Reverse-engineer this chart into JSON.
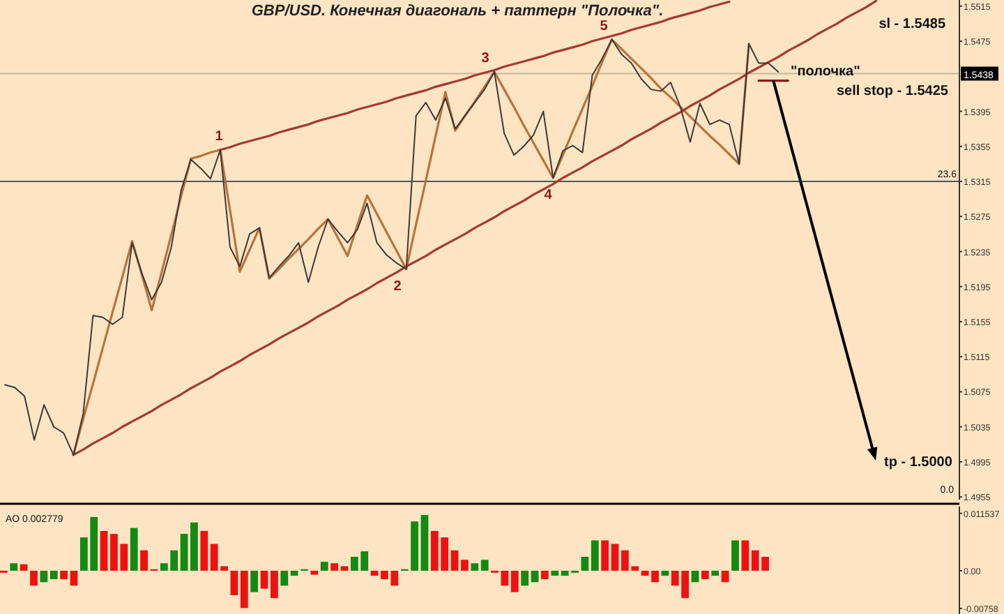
{
  "chart_data": [
    {
      "type": "line",
      "title": "GBP/USD. Конечная диагональ + паттерн \"Полочка\".",
      "ylim": [
        1.4952,
        1.5522
      ],
      "tick_labels": "y",
      "categories": [
        null,
        null,
        null,
        null,
        null,
        null,
        null,
        null,
        null,
        null,
        null,
        null,
        null,
        null,
        null,
        null,
        null,
        null,
        null,
        null,
        null,
        null,
        null,
        null,
        null,
        null,
        null,
        null,
        null,
        null,
        null,
        null,
        null,
        null,
        null,
        null,
        null,
        null,
        null,
        null,
        null,
        null,
        null,
        null,
        null,
        null,
        null,
        null,
        null,
        null,
        null,
        null,
        null,
        null,
        null,
        null,
        null,
        null,
        null,
        null,
        null,
        null,
        null,
        null,
        null,
        null,
        null,
        null,
        null,
        null,
        null,
        null,
        null,
        null,
        null,
        null,
        null,
        null,
        null,
        null,
        null,
        null,
        null,
        null,
        null,
        null,
        null,
        null,
        null,
        null,
        null,
        null,
        null,
        null,
        null,
        null,
        null,
        null
      ],
      "yticks": [
        1.5515,
        1.5475,
        1.5395,
        1.5355,
        1.5315,
        1.5275,
        1.5235,
        1.5195,
        1.5155,
        1.5115,
        1.5075,
        1.5035,
        1.4995,
        1.4955
      ],
      "series": [
        {
          "color": "#3a3a3a",
          "values": [
            1.5083,
            1.508,
            1.507,
            1.502,
            1.506,
            1.5035,
            1.5028,
            1.5003,
            1.505,
            1.5162,
            1.516,
            1.5152,
            1.516,
            1.5245,
            1.521,
            1.518,
            1.52,
            1.524,
            1.5305,
            1.534,
            1.533,
            1.5318,
            1.5351,
            1.524,
            1.5218,
            1.5255,
            1.5262,
            1.5205,
            1.5218,
            1.523,
            1.5245,
            1.52,
            1.524,
            1.5272,
            1.5258,
            1.5245,
            1.526,
            1.529,
            1.5245,
            1.5231,
            1.5222,
            1.5215,
            1.539,
            1.5405,
            1.5385,
            1.541,
            1.5375,
            1.539,
            1.5405,
            1.542,
            1.544,
            1.537,
            1.5345,
            1.5355,
            1.5368,
            1.5395,
            1.5319,
            1.535,
            1.5356,
            1.5348,
            1.5436,
            1.5455,
            1.5477,
            1.546,
            1.545,
            1.5432,
            1.542,
            1.5418,
            1.5428,
            1.54,
            1.536,
            1.5404,
            1.538,
            1.5385,
            1.538,
            1.5335,
            1.5472,
            1.545,
            1.545,
            1.544,
            null,
            null,
            null,
            null,
            null,
            null,
            null,
            null,
            null,
            null,
            null,
            null,
            null,
            null,
            null,
            null,
            null,
            null
          ]
        },
        {
          "color": "#b8733a",
          "values": [
            null,
            null,
            null,
            null,
            null,
            null,
            null,
            1.5003,
            1.5044,
            1.5084,
            1.5125,
            1.5166,
            1.5206,
            1.5247,
            1.5208,
            1.5168,
            1.5211,
            1.5254,
            1.5298,
            1.5341,
            1.5344,
            1.5348,
            1.5351,
            1.5282,
            1.5212,
            1.5237,
            1.5262,
            1.5204,
            1.5215,
            1.5227,
            1.5238,
            1.5249,
            1.5261,
            1.5272,
            1.5251,
            1.523,
            1.5265,
            1.5299,
            1.5278,
            1.5257,
            1.5236,
            1.5215,
            1.5266,
            1.5316,
            1.5367,
            1.5417,
            1.5373,
            1.539,
            1.5406,
            1.5423,
            1.544,
            1.542,
            1.54,
            1.5379,
            1.5359,
            1.5339,
            1.5319,
            1.5345,
            1.5372,
            1.5398,
            1.5424,
            1.5451,
            1.5477,
            1.5466,
            1.5455,
            1.5444,
            1.5433,
            1.5421,
            1.5411,
            1.54,
            1.5389,
            1.5378,
            1.5367,
            1.5357,
            1.5346,
            1.5335,
            1.5472,
            null,
            null,
            null,
            null,
            null,
            null,
            null,
            null,
            null,
            null,
            null,
            null,
            null,
            null,
            null,
            null,
            null,
            null,
            null,
            null,
            null
          ]
        },
        {
          "color": "#a33a30",
          "values": [
            null,
            null,
            null,
            null,
            null,
            null,
            null,
            null,
            null,
            null,
            null,
            null,
            null,
            null,
            null,
            null,
            null,
            null,
            null,
            null,
            null,
            null,
            1.5351,
            1.5354,
            1.5358,
            1.5361,
            1.5364,
            1.5367,
            1.5371,
            1.5374,
            1.5377,
            1.538,
            1.5384,
            1.5387,
            1.539,
            1.5393,
            1.5397,
            1.54,
            1.5403,
            1.5406,
            1.541,
            1.5413,
            1.5416,
            1.5419,
            1.5423,
            1.5426,
            1.5429,
            1.5432,
            1.5436,
            1.5439,
            1.5442,
            1.5446,
            1.5449,
            1.5452,
            1.5455,
            1.5458,
            1.5462,
            1.5465,
            1.5468,
            1.5471,
            1.5475,
            1.5478,
            1.5481,
            1.5484,
            1.5488,
            1.5491,
            1.5494,
            1.5497,
            1.5501,
            1.5504,
            1.5507,
            1.551,
            1.5514,
            1.5517,
            1.552,
            null,
            null,
            null,
            null,
            null,
            null,
            null,
            null,
            null,
            null,
            null,
            null,
            null,
            null,
            null,
            null,
            null,
            null,
            null,
            null,
            null,
            null,
            null
          ]
        },
        {
          "color": "#a33a30",
          "values": [
            null,
            null,
            null,
            null,
            null,
            null,
            null,
            1.5003,
            1.5009,
            1.5016,
            1.5022,
            1.5028,
            1.5035,
            1.5041,
            1.5047,
            1.5053,
            1.506,
            1.5066,
            1.5072,
            1.5079,
            1.5085,
            1.5091,
            1.5098,
            1.5104,
            1.511,
            1.5117,
            1.5123,
            1.5129,
            1.5136,
            1.5142,
            1.5148,
            1.5154,
            1.5161,
            1.5167,
            1.5173,
            1.518,
            1.5186,
            1.5192,
            1.5199,
            1.5205,
            1.5211,
            1.5218,
            1.5224,
            1.523,
            1.5237,
            1.5243,
            1.5249,
            1.5255,
            1.5262,
            1.5268,
            1.5274,
            1.5281,
            1.5287,
            1.5293,
            1.53,
            1.5306,
            1.5312,
            1.5319,
            1.5325,
            1.5331,
            1.5338,
            1.5344,
            1.535,
            1.5356,
            1.5363,
            1.5369,
            1.5375,
            1.5382,
            1.5388,
            1.5394,
            1.5401,
            1.5407,
            1.5413,
            1.542,
            1.5426,
            1.5432,
            1.5439,
            1.5445,
            1.5451,
            1.5457,
            1.5464,
            1.547,
            1.5476,
            1.5483,
            1.5489,
            1.5495,
            1.5502,
            1.5508,
            1.5514,
            1.5521,
            null,
            null,
            null,
            null,
            null,
            null,
            null,
            null
          ]
        },
        {
          "color": "#8b1a1a",
          "values": [
            null,
            null,
            null,
            null,
            null,
            null,
            null,
            null,
            null,
            null,
            null,
            null,
            null,
            null,
            null,
            null,
            null,
            null,
            null,
            null,
            null,
            null,
            null,
            null,
            null,
            null,
            null,
            null,
            null,
            null,
            null,
            null,
            null,
            null,
            null,
            null,
            null,
            null,
            null,
            null,
            null,
            null,
            null,
            null,
            null,
            null,
            null,
            null,
            null,
            null,
            null,
            null,
            null,
            null,
            null,
            null,
            null,
            null,
            null,
            null,
            null,
            null,
            null,
            null,
            null,
            null,
            null,
            null,
            null,
            null,
            null,
            null,
            null,
            null,
            null,
            null,
            null,
            1.543,
            1.543,
            1.543,
            1.543,
            null,
            null,
            null,
            null,
            null,
            null,
            null,
            null,
            null,
            null,
            null,
            null,
            null,
            null,
            null,
            null,
            null
          ]
        }
      ],
      "ref_lines": [
        {
          "axis": "y",
          "value": 1.5315,
          "color": "#555555"
        },
        {
          "axis": "y",
          "value": 1.5438,
          "label": "1.5438",
          "color": "#c9b79c"
        }
      ],
      "annotations": [
        {
          "text": "1",
          "y": 1.5351
        },
        {
          "text": "2",
          "y": 1.5215
        },
        {
          "text": "3",
          "y": 1.544
        },
        {
          "text": "4",
          "y": 1.5319
        },
        {
          "text": "5",
          "y": 1.5477
        },
        "\"полочка\"",
        "sl - 1.5485",
        "sell stop - 1.5425",
        "23.6",
        "0.0",
        "tp - 1.5000"
      ]
    },
    {
      "type": "bar",
      "ylim": [
        -0.0087,
        0.0129
      ],
      "tick_labels": "y",
      "categories": [
        null,
        null,
        null,
        null,
        null,
        null,
        null,
        null,
        null,
        null,
        null,
        null,
        null,
        null,
        null,
        null,
        null,
        null,
        null,
        null,
        null,
        null,
        null,
        null,
        null,
        null,
        null,
        null,
        null,
        null,
        null,
        null,
        null,
        null,
        null,
        null,
        null,
        null,
        null,
        null,
        null,
        null,
        null,
        null,
        null,
        null,
        null,
        null,
        null,
        null,
        null,
        null,
        null,
        null,
        null,
        null,
        null,
        null,
        null,
        null,
        null,
        null,
        null,
        null,
        null,
        null,
        null,
        null,
        null,
        null,
        null,
        null,
        null,
        null,
        null,
        null,
        null,
        null,
        null,
        null,
        null,
        null,
        null,
        null,
        null,
        null,
        null,
        null,
        null,
        null,
        null,
        null,
        null,
        null,
        null,
        null
      ],
      "yticks": [
        {
          "value": 0.011537,
          "label": "0.011537"
        },
        {
          "value": 0,
          "label": "0.00"
        },
        {
          "value": -0.00758,
          "label": "-0.00758"
        }
      ],
      "values": [
        -0.0004,
        0.0015,
        0.0013,
        -0.003,
        -0.0023,
        -0.0017,
        -0.0017,
        -0.003,
        0.0067,
        0.0108,
        0.008,
        0.0074,
        0.0054,
        0.0086,
        0.0041,
        0.0003,
        0.0015,
        0.0041,
        0.0074,
        0.0097,
        0.008,
        0.0054,
        0.0009,
        -0.0049,
        -0.0075,
        -0.0043,
        -0.0036,
        -0.0055,
        -0.003,
        -0.001,
        0.0003,
        -0.0008,
        0.0018,
        0.0015,
        0.0009,
        0.0028,
        0.0039,
        -0.001,
        -0.0017,
        -0.003,
        0.0003,
        0.0099,
        0.0112,
        0.008,
        0.0067,
        0.0041,
        0.0022,
        0.0015,
        0.0022,
        -0.0004,
        -0.003,
        -0.0043,
        -0.003,
        -0.0023,
        -0.0017,
        -0.001,
        -0.001,
        -0.0004,
        0.0028,
        0.0061,
        0.0061,
        0.0054,
        0.0041,
        0.0009,
        -0.001,
        -0.0023,
        -0.001,
        -0.003,
        -0.0055,
        -0.0023,
        -0.0017,
        -0.001,
        -0.0023,
        0.0061,
        0.0061,
        0.0041,
        0.0028,
        null,
        null,
        null,
        null,
        null,
        null,
        null,
        null,
        null,
        null,
        null,
        null,
        null,
        null,
        null,
        null,
        null,
        null,
        null
      ],
      "colors": [
        "#ee1111",
        "#138a13",
        "#ee1111",
        "#ee1111",
        "#138a13",
        "#138a13",
        "#ee1111",
        "#ee1111",
        "#138a13",
        "#138a13",
        "#ee1111",
        "#ee1111",
        "#ee1111",
        "#138a13",
        "#ee1111",
        "#ee1111",
        "#138a13",
        "#138a13",
        "#138a13",
        "#138a13",
        "#ee1111",
        "#ee1111",
        "#ee1111",
        "#ee1111",
        "#ee1111",
        "#138a13",
        "#ee1111",
        "#ee1111",
        "#138a13",
        "#138a13",
        "#138a13",
        "#ee1111",
        "#138a13",
        "#ee1111",
        "#ee1111",
        "#138a13",
        "#138a13",
        "#ee1111",
        "#ee1111",
        "#ee1111",
        "#138a13",
        "#138a13",
        "#138a13",
        "#ee1111",
        "#ee1111",
        "#ee1111",
        "#ee1111",
        "#138a13",
        "#138a13",
        "#ee1111",
        "#ee1111",
        "#ee1111",
        "#138a13",
        "#138a13",
        "#ee1111",
        "#138a13",
        "#138a13",
        "#138a13",
        "#138a13",
        "#138a13",
        "#ee1111",
        "#ee1111",
        "#ee1111",
        "#ee1111",
        "#ee1111",
        "#ee1111",
        "#138a13",
        "#ee1111",
        "#ee1111",
        "#138a13",
        "#ee1111",
        "#138a13",
        "#ee1111",
        "#138a13",
        "#ee1111",
        "#ee1111",
        "#ee1111",
        null,
        null,
        null,
        null,
        null,
        null,
        null,
        null,
        null,
        null,
        null,
        null,
        null,
        null,
        null,
        null,
        null,
        null,
        null
      ],
      "annotations": [
        "AO 0.002779"
      ]
    }
  ]
}
